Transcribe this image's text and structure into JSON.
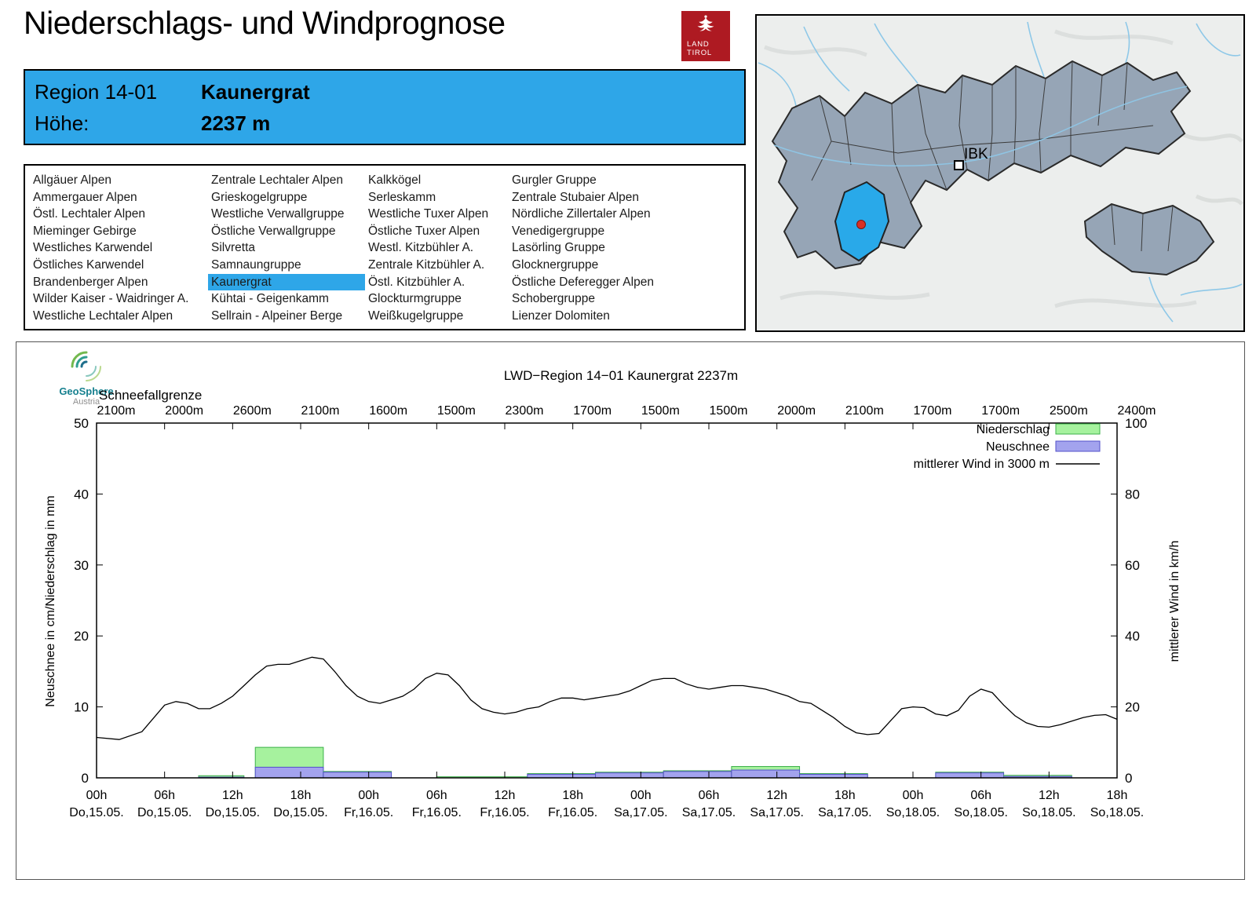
{
  "theme": {
    "accent": "#2ea6e8",
    "logo_red": "#ae1a22",
    "map_highlight": "#29a9e9"
  },
  "header": {
    "title": "Niederschlags- und Windprognose",
    "logo": {
      "line1": "LAND",
      "line2": "TIROL"
    }
  },
  "region_info": {
    "region_label": "Region 14-01",
    "region_name": "Kaunergrat",
    "altitude_label": "Höhe:",
    "altitude_value": "2237 m"
  },
  "region_list": {
    "selected": "Kaunergrat",
    "columns": [
      [
        "Allgäuer Alpen",
        "Ammergauer Alpen",
        "Östl. Lechtaler Alpen",
        "Mieminger Gebirge",
        "Westliches Karwendel",
        "Östliches Karwendel",
        "Brandenberger Alpen",
        "Wilder Kaiser - Waidringer A.",
        "Westliche Lechtaler Alpen"
      ],
      [
        "Zentrale Lechtaler Alpen",
        "Grieskogelgruppe",
        "Westliche Verwallgruppe",
        "Östliche Verwallgruppe",
        "Silvretta",
        "Samnaungruppe",
        "Kaunergrat",
        "Kühtai - Geigenkamm",
        "Sellrain - Alpeiner Berge"
      ],
      [
        "Kalkkögel",
        "Serleskamm",
        "Westliche Tuxer Alpen",
        "Östliche Tuxer Alpen",
        "Westl. Kitzbühler A.",
        "Zentrale Kitzbühler A.",
        "Östl. Kitzbühler A.",
        "Glockturmgruppe",
        "Weißkugelgruppe"
      ],
      [
        "Gurgler Gruppe",
        "Zentrale Stubaier Alpen",
        "Nördliche Zillertaler Alpen",
        "Venedigergruppe",
        "Lasörling Gruppe",
        "Glocknergruppe",
        "Östliche Deferegger Alpen",
        "Schobergruppe",
        "Lienzer Dolomiten"
      ]
    ]
  },
  "map": {
    "city_label": "IBK"
  },
  "chart": {
    "branding": {
      "name": "GeoSphere",
      "sub": "Austria"
    }
  },
  "chart_data": {
    "type": "combo",
    "title": "LWD−Region 14−01 Kaunergrat 2237m",
    "x_axis": {
      "span_hours": 90,
      "tick_interval_hours": 6
    },
    "x_ticks": [
      {
        "hour": "00h",
        "date": "Do,15.05."
      },
      {
        "hour": "06h",
        "date": "Do,15.05."
      },
      {
        "hour": "12h",
        "date": "Do,15.05."
      },
      {
        "hour": "18h",
        "date": "Do,15.05."
      },
      {
        "hour": "00h",
        "date": "Fr,16.05."
      },
      {
        "hour": "06h",
        "date": "Fr,16.05."
      },
      {
        "hour": "12h",
        "date": "Fr,16.05."
      },
      {
        "hour": "18h",
        "date": "Fr,16.05."
      },
      {
        "hour": "00h",
        "date": "Sa,17.05."
      },
      {
        "hour": "06h",
        "date": "Sa,17.05."
      },
      {
        "hour": "12h",
        "date": "Sa,17.05."
      },
      {
        "hour": "18h",
        "date": "Sa,17.05."
      },
      {
        "hour": "00h",
        "date": "So,18.05."
      },
      {
        "hour": "06h",
        "date": "So,18.05."
      },
      {
        "hour": "12h",
        "date": "So,18.05."
      },
      {
        "hour": "18h",
        "date": "So,18.05."
      }
    ],
    "snowline_label": "Schneefallgrenze",
    "snowline_m": [
      2100,
      2000,
      2600,
      2100,
      1600,
      1500,
      2300,
      1700,
      1500,
      1500,
      2000,
      2100,
      1700,
      1700,
      2500,
      2400
    ],
    "left_axis": {
      "label": "Neuschnee in cm/Niederschlag in mm",
      "min": 0,
      "max": 50,
      "tick_step": 10
    },
    "right_axis": {
      "label": "mittlerer Wind in km/h",
      "min": 0,
      "max": 100,
      "tick_step": 20
    },
    "legend": [
      {
        "label": "Niederschlag",
        "type": "bar",
        "fill": "#a6f29e",
        "stroke": "#3cb04a"
      },
      {
        "label": "Neuschnee",
        "type": "bar",
        "fill": "#a3a3ee",
        "stroke": "#5352c8"
      },
      {
        "label": "mittlerer Wind in 3000 m",
        "type": "line",
        "stroke": "#000000"
      }
    ],
    "bars": [
      {
        "start_h": 9,
        "end_h": 13,
        "niederschlag_mm": 0.3,
        "neuschnee_cm": 0.1
      },
      {
        "start_h": 14,
        "end_h": 20,
        "niederschlag_mm": 4.3,
        "neuschnee_cm": 1.5
      },
      {
        "start_h": 20,
        "end_h": 26,
        "niederschlag_mm": 0.9,
        "neuschnee_cm": 0.8
      },
      {
        "start_h": 30,
        "end_h": 38,
        "niederschlag_mm": 0.15,
        "neuschnee_cm": 0.0
      },
      {
        "start_h": 38,
        "end_h": 44,
        "niederschlag_mm": 0.6,
        "neuschnee_cm": 0.5
      },
      {
        "start_h": 44,
        "end_h": 50,
        "niederschlag_mm": 0.8,
        "neuschnee_cm": 0.7
      },
      {
        "start_h": 50,
        "end_h": 56,
        "niederschlag_mm": 1.0,
        "neuschnee_cm": 0.9
      },
      {
        "start_h": 56,
        "end_h": 62,
        "niederschlag_mm": 1.6,
        "neuschnee_cm": 1.1
      },
      {
        "start_h": 62,
        "end_h": 68,
        "niederschlag_mm": 0.6,
        "neuschnee_cm": 0.5
      },
      {
        "start_h": 74,
        "end_h": 80,
        "niederschlag_mm": 0.8,
        "neuschnee_cm": 0.7
      },
      {
        "start_h": 80,
        "end_h": 86,
        "niederschlag_mm": 0.35,
        "neuschnee_cm": 0.2
      }
    ],
    "wind_kmh": [
      [
        0,
        11.4
      ],
      [
        2,
        10.8
      ],
      [
        4,
        13
      ],
      [
        6,
        20.5
      ],
      [
        7,
        21.5
      ],
      [
        8,
        21
      ],
      [
        9,
        19.5
      ],
      [
        10,
        19.5
      ],
      [
        11,
        21
      ],
      [
        12,
        23
      ],
      [
        13,
        26
      ],
      [
        14,
        29
      ],
      [
        15,
        31.5
      ],
      [
        16,
        32
      ],
      [
        17,
        32
      ],
      [
        18,
        33
      ],
      [
        19,
        34
      ],
      [
        20,
        33.5
      ],
      [
        21,
        30
      ],
      [
        22,
        26
      ],
      [
        23,
        23
      ],
      [
        24,
        21.5
      ],
      [
        25,
        21
      ],
      [
        26,
        22
      ],
      [
        27,
        23
      ],
      [
        28,
        25
      ],
      [
        29,
        28
      ],
      [
        30,
        29.5
      ],
      [
        31,
        29
      ],
      [
        32,
        26
      ],
      [
        33,
        22
      ],
      [
        34,
        19.5
      ],
      [
        35,
        18.5
      ],
      [
        36,
        18
      ],
      [
        37,
        18.5
      ],
      [
        38,
        19.5
      ],
      [
        39,
        20
      ],
      [
        40,
        21.5
      ],
      [
        41,
        22.5
      ],
      [
        42,
        22.5
      ],
      [
        43,
        22
      ],
      [
        44,
        22.5
      ],
      [
        45,
        23
      ],
      [
        46,
        23.5
      ],
      [
        47,
        24.5
      ],
      [
        48,
        26
      ],
      [
        49,
        27.5
      ],
      [
        50,
        28
      ],
      [
        51,
        28
      ],
      [
        52,
        26.5
      ],
      [
        53,
        25.5
      ],
      [
        54,
        25
      ],
      [
        55,
        25.5
      ],
      [
        56,
        26
      ],
      [
        57,
        26
      ],
      [
        58,
        25.5
      ],
      [
        59,
        25
      ],
      [
        60,
        24
      ],
      [
        61,
        23
      ],
      [
        62,
        21.5
      ],
      [
        63,
        21
      ],
      [
        64,
        19
      ],
      [
        65,
        17
      ],
      [
        66,
        14.5
      ],
      [
        67,
        12.7
      ],
      [
        68,
        12.2
      ],
      [
        69,
        12.5
      ],
      [
        70,
        16
      ],
      [
        71,
        19.5
      ],
      [
        72,
        20
      ],
      [
        73,
        19.8
      ],
      [
        74,
        18
      ],
      [
        75,
        17.5
      ],
      [
        76,
        19
      ],
      [
        77,
        23
      ],
      [
        78,
        25
      ],
      [
        79,
        24
      ],
      [
        80,
        20.5
      ],
      [
        81,
        17.5
      ],
      [
        82,
        15.5
      ],
      [
        83,
        14.5
      ],
      [
        84,
        14.3
      ],
      [
        85,
        15
      ],
      [
        86,
        16
      ],
      [
        87,
        17
      ],
      [
        88,
        17.6
      ],
      [
        89,
        17.8
      ],
      [
        90,
        16.5
      ]
    ]
  }
}
